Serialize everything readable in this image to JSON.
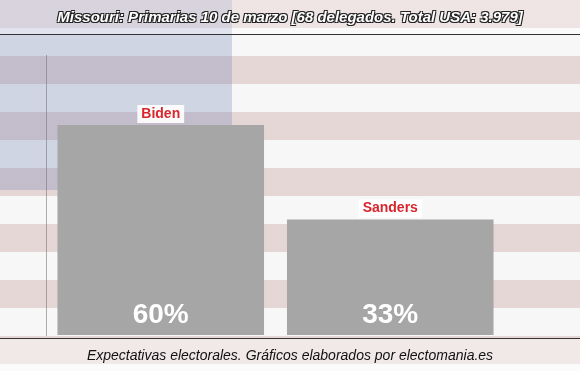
{
  "chart_data": {
    "type": "bar",
    "title": "Missouri: Primarias 10 de marzo [68 delegados. Total USA: 3.979]",
    "footer": "Expectativas electorales. Gráficos elaborados por electomania.es",
    "categories": [
      "Biden",
      "Sanders"
    ],
    "values": [
      60,
      33
    ],
    "value_labels": [
      "60%",
      "33%"
    ],
    "data_labels": true,
    "color": "#a6a6a6",
    "ylim": [
      0,
      80
    ],
    "grid": false,
    "tick_labels": false
  }
}
